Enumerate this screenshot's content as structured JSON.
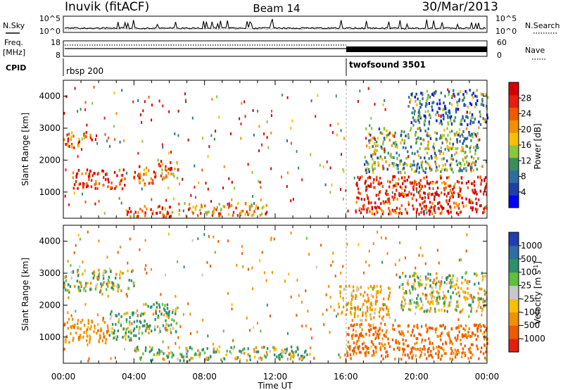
{
  "header": {
    "station": "Inuvik (fitACF)",
    "beam": "Beam 14",
    "date": "30/Mar/2013"
  },
  "noise_panel": {
    "left_label": "N.Sky",
    "right_label": "N.Search",
    "left_ticks": [
      "10^5",
      "10^0"
    ],
    "right_ticks": [
      "10^5",
      "10^0"
    ]
  },
  "freq_panel": {
    "left_label_1": "Freq.",
    "left_label_2": "[MHz]",
    "right_label": "Nave",
    "left_ticks": [
      "18",
      "8"
    ],
    "right_ticks": [
      "60",
      "0"
    ]
  },
  "cpid": {
    "label": "CPID",
    "segments": [
      {
        "name": "rbsp 200",
        "start": "00:00",
        "end": "16:00"
      },
      {
        "name": "twofsound 3501",
        "start": "16:00",
        "end": "00:00"
      }
    ]
  },
  "time_axis": {
    "label": "Time UT",
    "ticks": [
      "00:00",
      "04:00",
      "08:00",
      "12:00",
      "16:00",
      "20:00",
      "00:00"
    ]
  },
  "range_axis": {
    "label": "Slant Range [km]",
    "ticks": [
      "1000",
      "2000",
      "3000",
      "4000"
    ]
  },
  "power_colorbar": {
    "label": "Power [dB]",
    "ticks": [
      "4",
      "8",
      "12",
      "16",
      "20",
      "24",
      "28"
    ],
    "colors": [
      "#0000ff",
      "#1f3fa8",
      "#2e6e9e",
      "#3c8d5c",
      "#8cc63f",
      "#f5c000",
      "#f28f00",
      "#ee5a00",
      "#e51e10",
      "#d40000"
    ]
  },
  "velocity_colorbar": {
    "label": "Velocity [m s",
    "label_sup": "-1",
    "label_end": "]",
    "ticks": [
      "1000",
      "500",
      "100",
      "25",
      "-25",
      "-100",
      "-500",
      "-1000"
    ],
    "colors": [
      "#1f3fb0",
      "#2e6ea0",
      "#2f8f6a",
      "#5fbf3f",
      "#c8c8c8",
      "#f5c000",
      "#f28f00",
      "#ee5a00",
      "#e51e10"
    ]
  },
  "chart_data": [
    {
      "type": "line",
      "title": "N.Sky / N.Search noise",
      "x_range": [
        "00:00",
        "24:00"
      ],
      "y_scale": "log",
      "ylim": [
        "10^0",
        "10^5"
      ]
    },
    {
      "type": "line",
      "title": "Freq. / Nave",
      "x_range": [
        "00:00",
        "24:00"
      ],
      "ylim_freq_mhz": [
        8,
        18
      ],
      "ylim_nave": [
        0,
        60
      ],
      "freq_mhz_approx": 11,
      "nave_before_16": 20,
      "nave_after_16": 12
    },
    {
      "type": "heatmap",
      "title": "Power [dB]",
      "x_range": [
        "00:00",
        "24:00"
      ],
      "ylim_km": [
        180,
        4500
      ],
      "zlim": [
        0,
        30
      ],
      "regions": [
        {
          "t0": 0.0,
          "t1": 1.6,
          "r0": 2400,
          "r1": 2900,
          "z": 22
        },
        {
          "t0": 0.5,
          "t1": 3.5,
          "r0": 1100,
          "r1": 1700,
          "z": 26
        },
        {
          "t0": 3.8,
          "t1": 5.2,
          "r0": 1200,
          "r1": 1800,
          "z": 24
        },
        {
          "t0": 5.3,
          "t1": 6.5,
          "r0": 1400,
          "r1": 2000,
          "z": 20
        },
        {
          "t0": 3.5,
          "t1": 6.2,
          "r0": 200,
          "r1": 550,
          "z": 25
        },
        {
          "t0": 6.5,
          "t1": 11.5,
          "r0": 250,
          "r1": 650,
          "z": 21
        },
        {
          "t0": 16.5,
          "t1": 24.0,
          "r0": 300,
          "r1": 1500,
          "z": 26
        },
        {
          "t0": 17.0,
          "t1": 23.5,
          "r0": 1600,
          "r1": 3000,
          "z": 12
        },
        {
          "t0": 19.5,
          "t1": 24.0,
          "r0": 3100,
          "r1": 4200,
          "z": 8
        }
      ]
    },
    {
      "type": "heatmap",
      "title": "Velocity [m s-1]",
      "x_range": [
        "00:00",
        "24:00"
      ],
      "ylim_km": [
        180,
        4500
      ],
      "zlim": [
        -1000,
        1000
      ],
      "regions": [
        {
          "t0": 0.0,
          "t1": 2.5,
          "r0": 800,
          "r1": 1600,
          "z": -300
        },
        {
          "t0": 2.5,
          "t1": 4.5,
          "r0": 900,
          "r1": 1800,
          "z": 150
        },
        {
          "t0": 4.5,
          "t1": 6.5,
          "r0": 1100,
          "r1": 2100,
          "z": 120
        },
        {
          "t0": 0.0,
          "t1": 4.0,
          "r0": 2400,
          "r1": 3100,
          "z": 0
        },
        {
          "t0": 4.0,
          "t1": 14.0,
          "r0": 250,
          "r1": 700,
          "z": 60
        },
        {
          "t0": 16.0,
          "t1": 24.0,
          "r0": 300,
          "r1": 1400,
          "z": -600
        },
        {
          "t0": 15.5,
          "t1": 18.5,
          "r0": 1500,
          "r1": 2600,
          "z": -200
        },
        {
          "t0": 19.0,
          "t1": 24.0,
          "r0": 1800,
          "r1": 3000,
          "z": 0
        }
      ]
    }
  ]
}
